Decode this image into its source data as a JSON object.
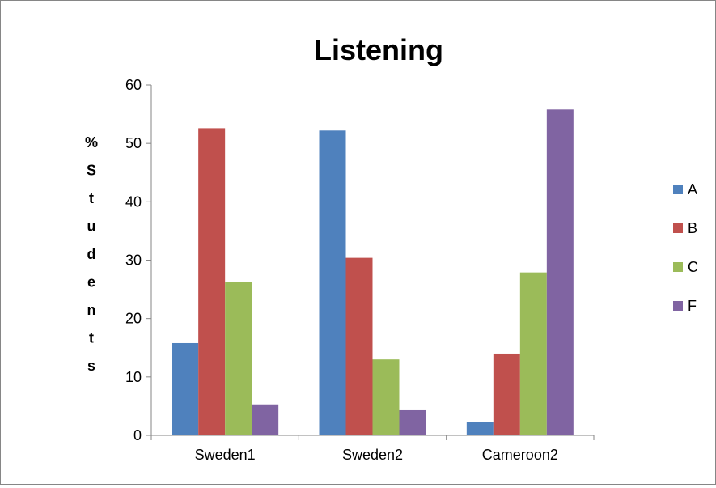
{
  "chart_data": {
    "type": "bar",
    "title": "Listening",
    "ylabel": "%Students",
    "xlabel": "",
    "categories": [
      "Sweden1",
      "Sweden2",
      "Cameroon2"
    ],
    "series": [
      {
        "name": "A",
        "color": "#4F81BD",
        "values": [
          15.8,
          52.2,
          2.3
        ]
      },
      {
        "name": "B",
        "color": "#C0504D",
        "values": [
          52.6,
          30.4,
          14.0
        ]
      },
      {
        "name": "C",
        "color": "#9BBB59",
        "values": [
          26.3,
          13.0,
          27.9
        ]
      },
      {
        "name": "F",
        "color": "#8064A2",
        "values": [
          5.3,
          4.3,
          55.8
        ]
      }
    ],
    "ylim": [
      0,
      60
    ],
    "yticks": [
      "0",
      "10",
      "20",
      "30",
      "40",
      "50",
      "60"
    ],
    "grid": false,
    "legend": "right"
  }
}
